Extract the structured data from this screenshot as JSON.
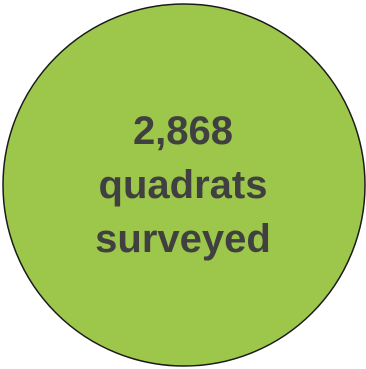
{
  "stat": {
    "line1": "2,868",
    "line2": "quadrats",
    "line3": "surveyed"
  },
  "colors": {
    "fill": "#9DC74B",
    "stroke": "#1A1A1A",
    "text": "#404040"
  }
}
